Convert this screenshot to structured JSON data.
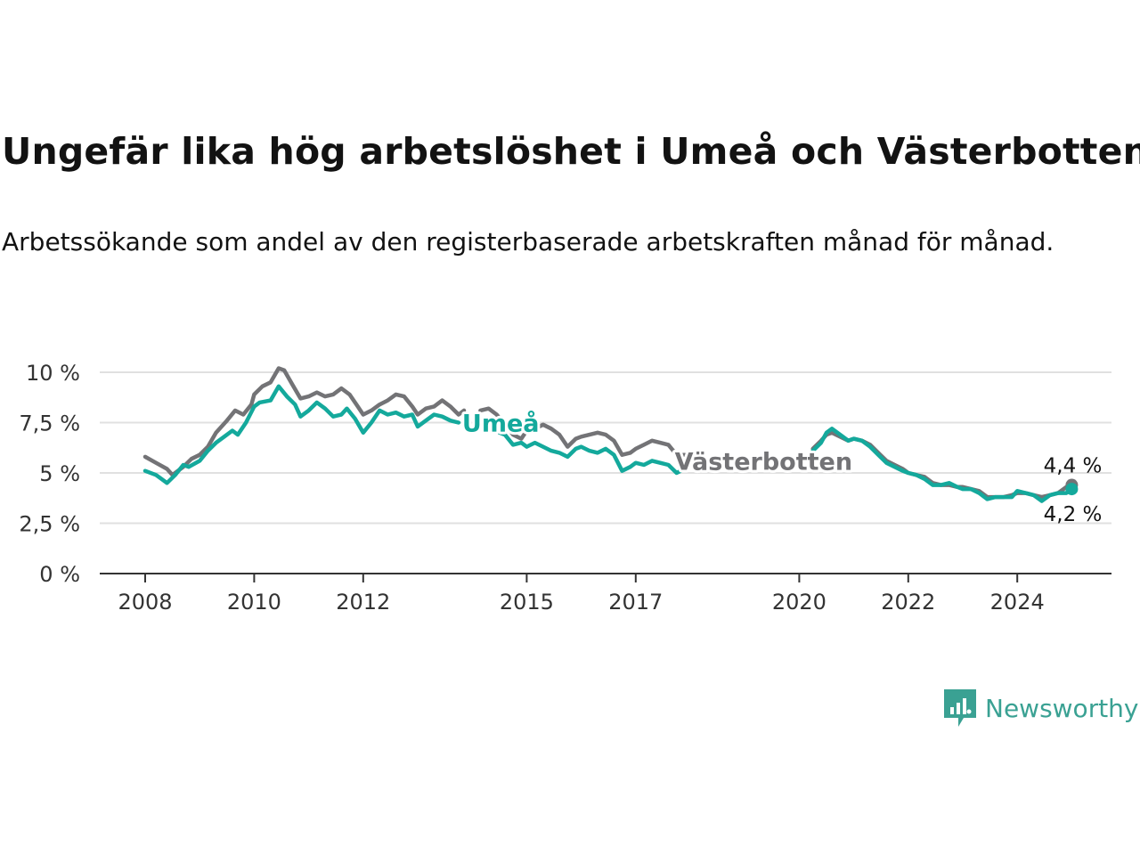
{
  "title": "Ungefär lika hög arbetslöshet i Umeå och Västerbotten",
  "subtitle": "Arbetssökande som andel av den registerbaserade arbetskraften månad för månad.",
  "brand": {
    "name": "Newsworthy",
    "icon": "newsworthy-logo-icon",
    "color": "#3aa193"
  },
  "colors": {
    "umea": "#14a99c",
    "vasterbotten": "#737376",
    "grid": "#e0e0e0",
    "axis": "#333333"
  },
  "chart_data": {
    "type": "line",
    "ylim": [
      0,
      10.3
    ],
    "y_ticks": [
      0,
      2.5,
      5,
      7.5,
      10
    ],
    "y_tick_labels": [
      "0 %",
      "2,5 %",
      "5 %",
      "7,5 %",
      "10 %"
    ],
    "x_range": [
      2008,
      2025.2
    ],
    "x_ticks": [
      2008,
      2010,
      2012,
      2015,
      2017,
      2020,
      2022,
      2024
    ],
    "x_tick_labels": [
      "2008",
      "2010",
      "2012",
      "2015",
      "2017",
      "2020",
      "2022",
      "2024"
    ],
    "grid": true,
    "series": [
      {
        "name": "Västerbotten",
        "color": "#737376",
        "end_label": "4,4 %",
        "points": [
          [
            2008.0,
            5.8
          ],
          [
            2008.2,
            5.5
          ],
          [
            2008.4,
            5.2
          ],
          [
            2008.5,
            4.9
          ],
          [
            2008.7,
            5.3
          ],
          [
            2008.85,
            5.7
          ],
          [
            2009.0,
            5.9
          ],
          [
            2009.15,
            6.3
          ],
          [
            2009.3,
            7.0
          ],
          [
            2009.5,
            7.6
          ],
          [
            2009.65,
            8.1
          ],
          [
            2009.8,
            7.9
          ],
          [
            2009.95,
            8.4
          ],
          [
            2010.0,
            8.9
          ],
          [
            2010.15,
            9.3
          ],
          [
            2010.3,
            9.5
          ],
          [
            2010.45,
            10.2
          ],
          [
            2010.55,
            10.1
          ],
          [
            2010.7,
            9.4
          ],
          [
            2010.85,
            8.7
          ],
          [
            2011.0,
            8.8
          ],
          [
            2011.15,
            9.0
          ],
          [
            2011.3,
            8.8
          ],
          [
            2011.45,
            8.9
          ],
          [
            2011.6,
            9.2
          ],
          [
            2011.75,
            8.9
          ],
          [
            2011.9,
            8.3
          ],
          [
            2012.0,
            7.9
          ],
          [
            2012.15,
            8.1
          ],
          [
            2012.3,
            8.4
          ],
          [
            2012.45,
            8.6
          ],
          [
            2012.6,
            8.9
          ],
          [
            2012.75,
            8.8
          ],
          [
            2012.9,
            8.3
          ],
          [
            2013.0,
            7.9
          ],
          [
            2013.15,
            8.2
          ],
          [
            2013.3,
            8.3
          ],
          [
            2013.45,
            8.6
          ],
          [
            2013.6,
            8.3
          ],
          [
            2013.75,
            7.9
          ],
          [
            2013.85,
            8.1
          ]
        ]
      },
      {
        "name": "Västerbotten",
        "color": "#737376",
        "points": [
          [
            2014.15,
            8.1
          ],
          [
            2014.3,
            8.2
          ],
          [
            2014.45,
            7.9
          ],
          [
            2014.6,
            7.4
          ],
          [
            2014.75,
            6.9
          ],
          [
            2014.9,
            6.7
          ],
          [
            2015.0,
            7.1
          ],
          [
            2015.15,
            7.2
          ],
          [
            2015.3,
            7.4
          ],
          [
            2015.45,
            7.2
          ],
          [
            2015.6,
            6.9
          ],
          [
            2015.75,
            6.3
          ],
          [
            2015.9,
            6.7
          ],
          [
            2016.0,
            6.8
          ],
          [
            2016.15,
            6.9
          ],
          [
            2016.3,
            7.0
          ],
          [
            2016.45,
            6.9
          ],
          [
            2016.6,
            6.6
          ],
          [
            2016.75,
            5.9
          ],
          [
            2016.9,
            6.0
          ],
          [
            2017.0,
            6.2
          ],
          [
            2017.15,
            6.4
          ],
          [
            2017.3,
            6.6
          ],
          [
            2017.45,
            6.5
          ],
          [
            2017.6,
            6.4
          ],
          [
            2017.75,
            5.9
          ],
          [
            2017.9,
            5.9
          ]
        ]
      },
      {
        "name": "Västerbotten",
        "color": "#737376",
        "points": [
          [
            2020.25,
            6.2
          ],
          [
            2020.4,
            6.6
          ],
          [
            2020.5,
            6.9
          ],
          [
            2020.6,
            7.0
          ],
          [
            2020.75,
            6.8
          ],
          [
            2020.9,
            6.6
          ],
          [
            2021.0,
            6.7
          ],
          [
            2021.15,
            6.6
          ],
          [
            2021.3,
            6.4
          ],
          [
            2021.45,
            6.0
          ],
          [
            2021.6,
            5.6
          ],
          [
            2021.75,
            5.4
          ],
          [
            2021.9,
            5.2
          ],
          [
            2022.0,
            5.0
          ],
          [
            2022.15,
            4.9
          ],
          [
            2022.3,
            4.8
          ],
          [
            2022.45,
            4.5
          ],
          [
            2022.6,
            4.4
          ],
          [
            2022.75,
            4.4
          ],
          [
            2022.9,
            4.3
          ],
          [
            2023.0,
            4.3
          ],
          [
            2023.15,
            4.2
          ],
          [
            2023.3,
            4.1
          ],
          [
            2023.45,
            3.8
          ],
          [
            2023.6,
            3.8
          ],
          [
            2023.75,
            3.8
          ],
          [
            2023.9,
            3.9
          ],
          [
            2024.0,
            4.0
          ],
          [
            2024.15,
            4.0
          ],
          [
            2024.3,
            3.9
          ],
          [
            2024.45,
            3.8
          ],
          [
            2024.6,
            3.9
          ],
          [
            2024.75,
            4.0
          ],
          [
            2024.9,
            4.3
          ],
          [
            2025.0,
            4.4
          ]
        ]
      },
      {
        "name": "Umeå",
        "color": "#14a99c",
        "end_label": "4,2 %",
        "points": [
          [
            2008.0,
            5.1
          ],
          [
            2008.2,
            4.9
          ],
          [
            2008.3,
            4.7
          ],
          [
            2008.4,
            4.5
          ],
          [
            2008.55,
            4.9
          ],
          [
            2008.7,
            5.4
          ],
          [
            2008.8,
            5.3
          ],
          [
            2009.0,
            5.6
          ],
          [
            2009.15,
            6.1
          ],
          [
            2009.3,
            6.5
          ],
          [
            2009.5,
            6.9
          ],
          [
            2009.6,
            7.1
          ],
          [
            2009.7,
            6.9
          ],
          [
            2009.85,
            7.5
          ],
          [
            2010.0,
            8.3
          ],
          [
            2010.1,
            8.5
          ],
          [
            2010.3,
            8.6
          ],
          [
            2010.45,
            9.3
          ],
          [
            2010.6,
            8.8
          ],
          [
            2010.75,
            8.4
          ],
          [
            2010.85,
            7.8
          ],
          [
            2011.0,
            8.1
          ],
          [
            2011.15,
            8.5
          ],
          [
            2011.3,
            8.2
          ],
          [
            2011.45,
            7.8
          ],
          [
            2011.6,
            7.9
          ],
          [
            2011.7,
            8.2
          ],
          [
            2011.85,
            7.7
          ],
          [
            2012.0,
            7.0
          ],
          [
            2012.15,
            7.5
          ],
          [
            2012.3,
            8.1
          ],
          [
            2012.45,
            7.9
          ],
          [
            2012.6,
            8.0
          ],
          [
            2012.75,
            7.8
          ],
          [
            2012.9,
            7.9
          ],
          [
            2013.0,
            7.3
          ],
          [
            2013.15,
            7.6
          ],
          [
            2013.3,
            7.9
          ],
          [
            2013.45,
            7.8
          ],
          [
            2013.6,
            7.6
          ],
          [
            2013.75,
            7.5
          ]
        ]
      },
      {
        "name": "Umeå",
        "color": "#14a99c",
        "points": [
          [
            2014.5,
            7.0
          ],
          [
            2014.6,
            6.9
          ],
          [
            2014.75,
            6.4
          ],
          [
            2014.9,
            6.5
          ],
          [
            2015.0,
            6.3
          ],
          [
            2015.15,
            6.5
          ],
          [
            2015.3,
            6.3
          ],
          [
            2015.45,
            6.1
          ],
          [
            2015.6,
            6.0
          ],
          [
            2015.75,
            5.8
          ],
          [
            2015.9,
            6.2
          ],
          [
            2016.0,
            6.3
          ],
          [
            2016.15,
            6.1
          ],
          [
            2016.3,
            6.0
          ],
          [
            2016.45,
            6.2
          ],
          [
            2016.6,
            5.9
          ],
          [
            2016.75,
            5.1
          ],
          [
            2016.9,
            5.3
          ],
          [
            2017.0,
            5.5
          ],
          [
            2017.15,
            5.4
          ],
          [
            2017.3,
            5.6
          ],
          [
            2017.45,
            5.5
          ],
          [
            2017.6,
            5.4
          ],
          [
            2017.75,
            5.0
          ],
          [
            2017.9,
            5.2
          ]
        ]
      },
      {
        "name": "Umeå",
        "color": "#14a99c",
        "points": [
          [
            2020.25,
            6.1
          ],
          [
            2020.4,
            6.5
          ],
          [
            2020.5,
            7.0
          ],
          [
            2020.6,
            7.2
          ],
          [
            2020.75,
            6.9
          ],
          [
            2020.9,
            6.6
          ],
          [
            2021.0,
            6.7
          ],
          [
            2021.15,
            6.6
          ],
          [
            2021.3,
            6.3
          ],
          [
            2021.45,
            5.9
          ],
          [
            2021.6,
            5.5
          ],
          [
            2021.75,
            5.3
          ],
          [
            2021.9,
            5.1
          ],
          [
            2022.0,
            5.0
          ],
          [
            2022.15,
            4.9
          ],
          [
            2022.3,
            4.7
          ],
          [
            2022.45,
            4.4
          ],
          [
            2022.6,
            4.4
          ],
          [
            2022.75,
            4.5
          ],
          [
            2022.9,
            4.3
          ],
          [
            2023.0,
            4.2
          ],
          [
            2023.15,
            4.2
          ],
          [
            2023.3,
            4.0
          ],
          [
            2023.45,
            3.7
          ],
          [
            2023.6,
            3.8
          ],
          [
            2023.75,
            3.8
          ],
          [
            2023.9,
            3.8
          ],
          [
            2024.0,
            4.1
          ],
          [
            2024.15,
            4.0
          ],
          [
            2024.3,
            3.9
          ],
          [
            2024.45,
            3.6
          ],
          [
            2024.6,
            3.9
          ],
          [
            2024.75,
            4.0
          ],
          [
            2024.9,
            4.0
          ],
          [
            2025.0,
            4.2
          ]
        ]
      }
    ],
    "series_labels": [
      {
        "text": "Umeå",
        "color": "#14a99c",
        "at": [
          2013.75,
          7.5
        ]
      },
      {
        "text": "Västerbotten",
        "color": "#737376",
        "at": [
          2017.65,
          5.6
        ]
      }
    ]
  }
}
